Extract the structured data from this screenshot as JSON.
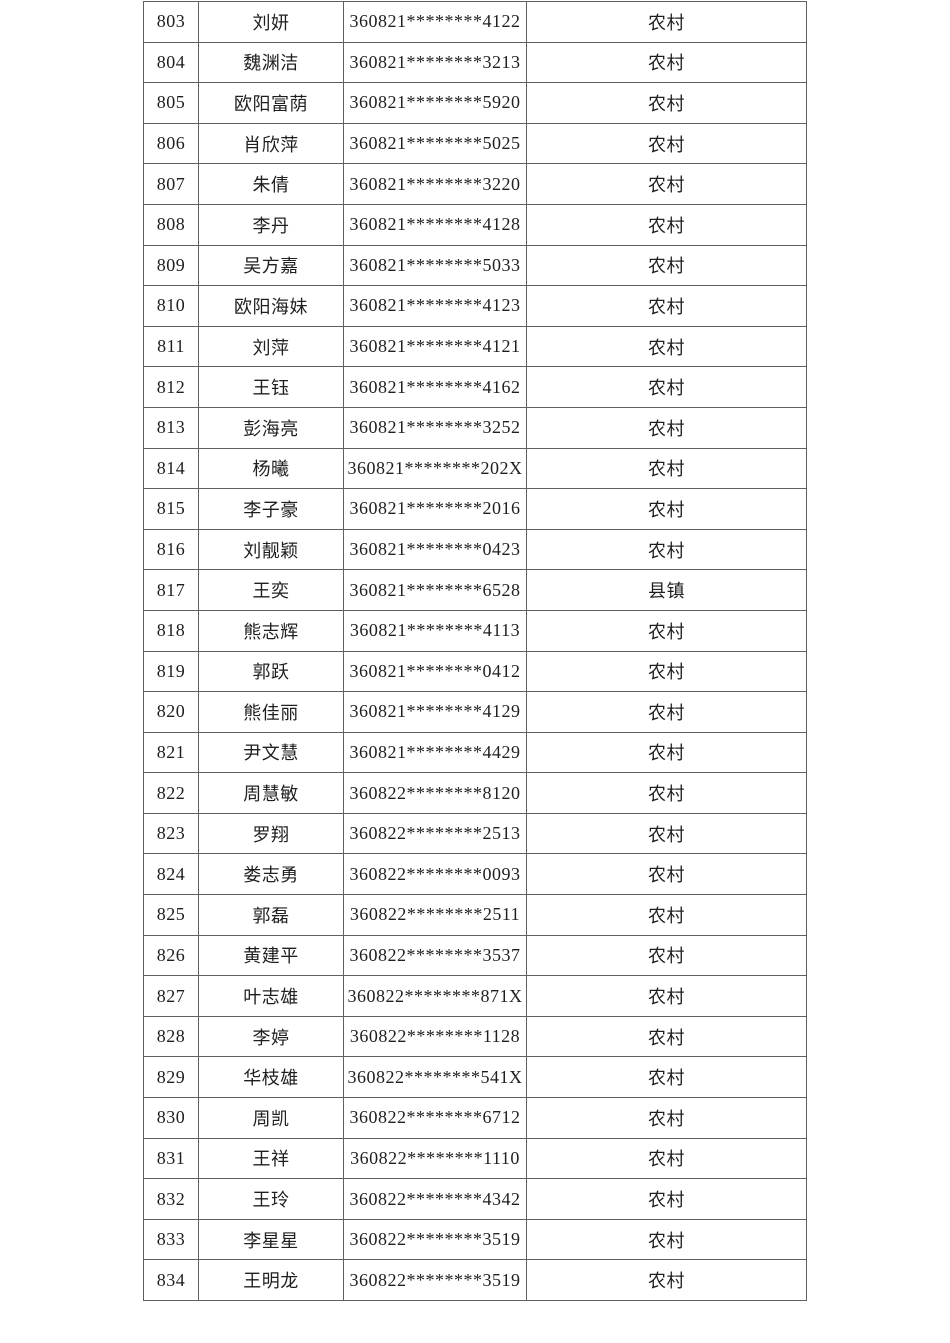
{
  "table": {
    "columns": [
      {
        "key": "num",
        "semantic": "row-number"
      },
      {
        "key": "name",
        "semantic": "person-name"
      },
      {
        "key": "id",
        "semantic": "masked-id-number"
      },
      {
        "key": "region",
        "semantic": "residence-type"
      }
    ],
    "rows": [
      {
        "num": "803",
        "name": "刘妍",
        "id": "360821********4122",
        "region": "农村"
      },
      {
        "num": "804",
        "name": "魏渊洁",
        "id": "360821********3213",
        "region": "农村"
      },
      {
        "num": "805",
        "name": "欧阳富荫",
        "id": "360821********5920",
        "region": "农村"
      },
      {
        "num": "806",
        "name": "肖欣萍",
        "id": "360821********5025",
        "region": "农村"
      },
      {
        "num": "807",
        "name": "朱倩",
        "id": "360821********3220",
        "region": "农村"
      },
      {
        "num": "808",
        "name": "李丹",
        "id": "360821********4128",
        "region": "农村"
      },
      {
        "num": "809",
        "name": "吴方嘉",
        "id": "360821********5033",
        "region": "农村"
      },
      {
        "num": "810",
        "name": "欧阳海妹",
        "id": "360821********4123",
        "region": "农村"
      },
      {
        "num": "811",
        "name": "刘萍",
        "id": "360821********4121",
        "region": "农村"
      },
      {
        "num": "812",
        "name": "王钰",
        "id": "360821********4162",
        "region": "农村"
      },
      {
        "num": "813",
        "name": "彭海亮",
        "id": "360821********3252",
        "region": "农村"
      },
      {
        "num": "814",
        "name": "杨曦",
        "id": "360821********202X",
        "region": "农村"
      },
      {
        "num": "815",
        "name": "李子豪",
        "id": "360821********2016",
        "region": "农村"
      },
      {
        "num": "816",
        "name": "刘靓颖",
        "id": "360821********0423",
        "region": "农村"
      },
      {
        "num": "817",
        "name": "王奕",
        "id": "360821********6528",
        "region": "县镇"
      },
      {
        "num": "818",
        "name": "熊志辉",
        "id": "360821********4113",
        "region": "农村"
      },
      {
        "num": "819",
        "name": "郭跃",
        "id": "360821********0412",
        "region": "农村"
      },
      {
        "num": "820",
        "name": "熊佳丽",
        "id": "360821********4129",
        "region": "农村"
      },
      {
        "num": "821",
        "name": "尹文慧",
        "id": "360821********4429",
        "region": "农村"
      },
      {
        "num": "822",
        "name": "周慧敏",
        "id": "360822********8120",
        "region": "农村"
      },
      {
        "num": "823",
        "name": "罗翔",
        "id": "360822********2513",
        "region": "农村"
      },
      {
        "num": "824",
        "name": "娄志勇",
        "id": "360822********0093",
        "region": "农村"
      },
      {
        "num": "825",
        "name": "郭磊",
        "id": "360822********2511",
        "region": "农村"
      },
      {
        "num": "826",
        "name": "黄建平",
        "id": "360822********3537",
        "region": "农村"
      },
      {
        "num": "827",
        "name": "叶志雄",
        "id": "360822********871X",
        "region": "农村"
      },
      {
        "num": "828",
        "name": "李婷",
        "id": "360822********1128",
        "region": "农村"
      },
      {
        "num": "829",
        "name": "华枝雄",
        "id": "360822********541X",
        "region": "农村"
      },
      {
        "num": "830",
        "name": "周凯",
        "id": "360822********6712",
        "region": "农村"
      },
      {
        "num": "831",
        "name": "王祥",
        "id": "360822********1110",
        "region": "农村"
      },
      {
        "num": "832",
        "name": "王玲",
        "id": "360822********4342",
        "region": "农村"
      },
      {
        "num": "833",
        "name": "李星星",
        "id": "360822********3519",
        "region": "农村"
      },
      {
        "num": "834",
        "name": "王明龙",
        "id": "360822********3519",
        "region": "农村"
      }
    ],
    "colors": {
      "border": "#5f5f5f",
      "text": "#1f1f1f",
      "background": "#ffffff"
    }
  }
}
